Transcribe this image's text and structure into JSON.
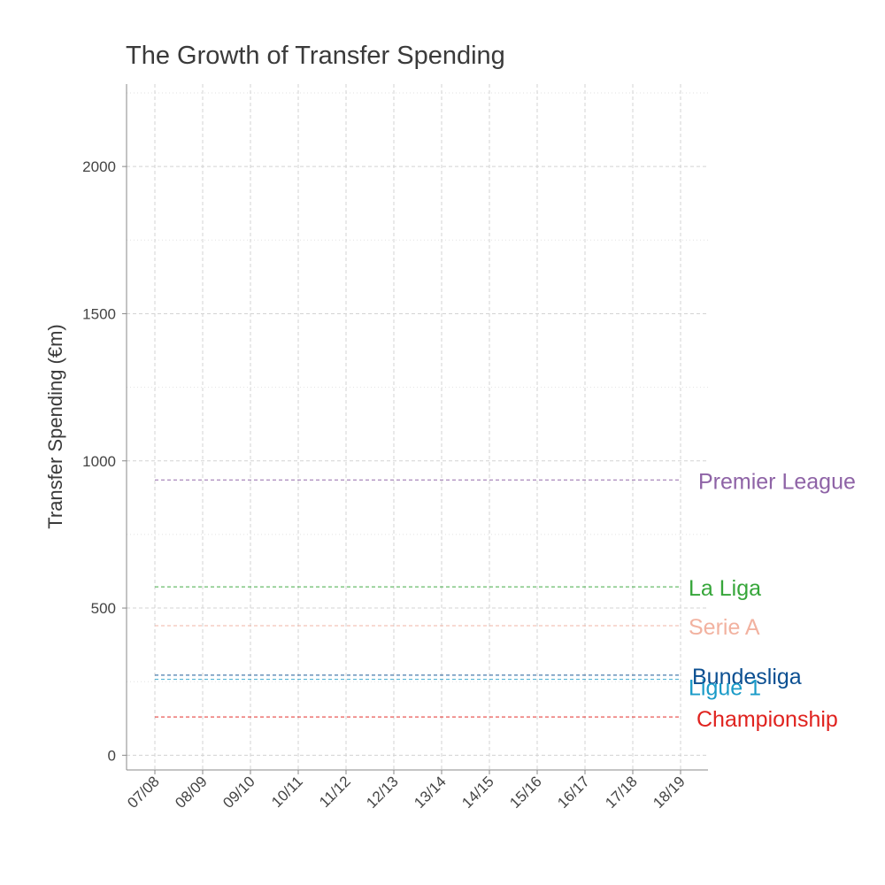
{
  "chart_data": {
    "type": "line",
    "title": "The Growth of Transfer Spending",
    "xlabel": "",
    "ylabel": "Transfer Spending (€m)",
    "categories": [
      "07/08",
      "08/09",
      "09/10",
      "10/11",
      "11/12",
      "12/13",
      "13/14",
      "14/15",
      "15/16",
      "16/17",
      "17/18",
      "18/19"
    ],
    "ylim": [
      -50,
      2280
    ],
    "yticks": [
      0,
      500,
      1000,
      1500,
      2000
    ],
    "grid": true,
    "legend": "direct labels at right end of lines",
    "series": [
      {
        "name": "Premier League",
        "color": "#8e63a6",
        "values": [
          935,
          935,
          935,
          935,
          935,
          935,
          935,
          935,
          935,
          935,
          935,
          935
        ]
      },
      {
        "name": "La Liga",
        "color": "#36a63a",
        "values": [
          572,
          572,
          572,
          572,
          572,
          572,
          572,
          572,
          572,
          572,
          572,
          572
        ]
      },
      {
        "name": "Serie A",
        "color": "#f2b2a0",
        "values": [
          440,
          440,
          440,
          440,
          440,
          440,
          440,
          440,
          440,
          440,
          440,
          440
        ]
      },
      {
        "name": "Bundesliga",
        "color": "#0b4f91",
        "values": [
          272,
          272,
          272,
          272,
          272,
          272,
          272,
          272,
          272,
          272,
          272,
          272
        ]
      },
      {
        "name": "Ligue 1",
        "color": "#1a9bc8",
        "values": [
          258,
          258,
          258,
          258,
          258,
          258,
          258,
          258,
          258,
          258,
          258,
          258
        ]
      },
      {
        "name": "Championship",
        "color": "#e0231f",
        "values": [
          130,
          130,
          130,
          130,
          130,
          130,
          130,
          130,
          130,
          130,
          130,
          130
        ]
      }
    ]
  }
}
